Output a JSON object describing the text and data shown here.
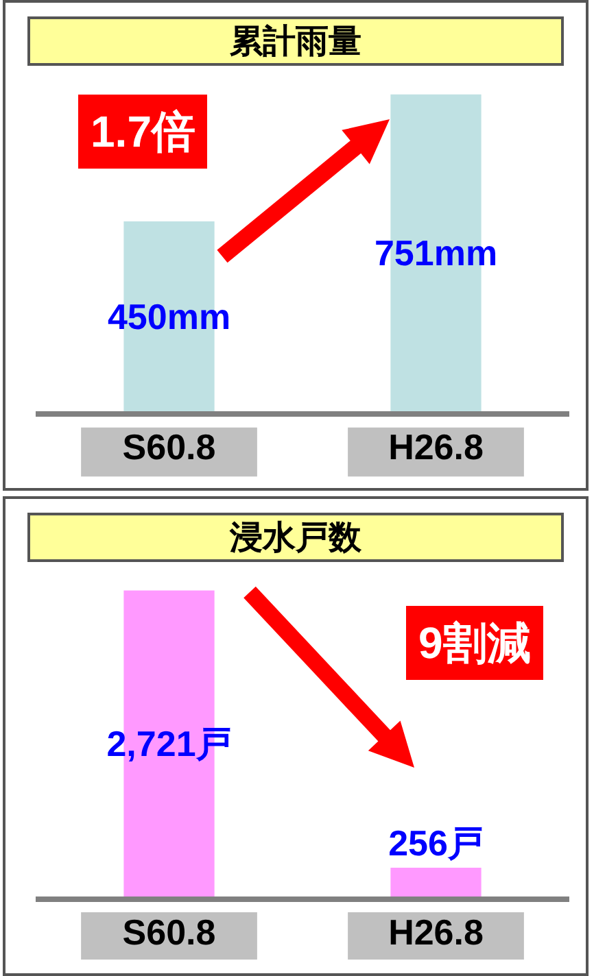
{
  "chart_data": [
    {
      "type": "bar",
      "title": "累計雨量",
      "categories": [
        "S60.8",
        "H26.8"
      ],
      "values": [
        450,
        751
      ],
      "value_labels": [
        "450mm",
        "751mm"
      ],
      "color": "#bfe1e3",
      "annotations": [
        "1.7倍"
      ],
      "legend": false,
      "grid": false
    },
    {
      "type": "bar",
      "title": "浸水戸数",
      "categories": [
        "S60.8",
        "H26.8"
      ],
      "values": [
        2721,
        256
      ],
      "value_labels": [
        "2,721戸",
        "256戸"
      ],
      "color": "#ff99ff",
      "annotations": [
        "9割減"
      ],
      "legend": false,
      "grid": false
    }
  ]
}
